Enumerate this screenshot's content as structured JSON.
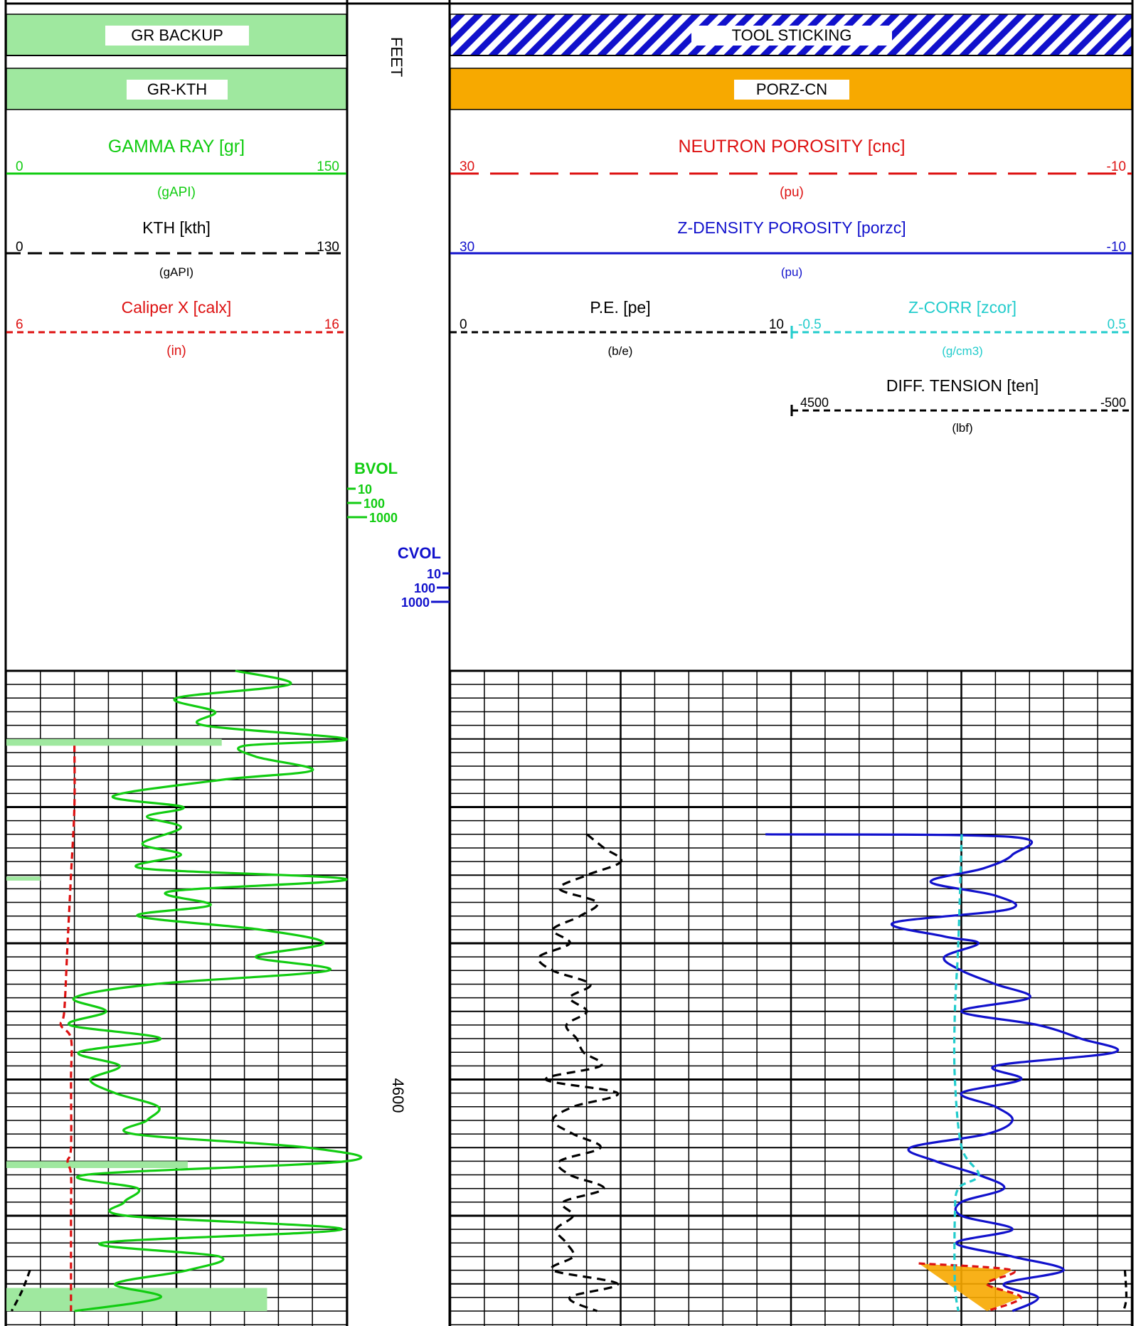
{
  "colors": {
    "green": "#11cc11",
    "red": "#dd1111",
    "blue": "#1111cc",
    "cyan": "#22cccc",
    "black": "#000000",
    "orange": "#f7a900",
    "lightgreen": "#9fe89f"
  },
  "legends": {
    "gr_backup": "GR BACKUP",
    "gr_kth": "GR-KTH",
    "tool_sticking": "TOOL STICKING",
    "porz_cn": "PORZ-CN"
  },
  "depth": {
    "unit": "FEET",
    "label_4600": "4600",
    "bvol": {
      "title": "BVOL",
      "ticks": [
        "10",
        "100",
        "1000"
      ]
    },
    "cvol": {
      "title": "CVOL",
      "ticks": [
        "10",
        "100",
        "1000"
      ]
    }
  },
  "headers": {
    "gr": {
      "name": "GAMMA RAY [gr]",
      "left": "0",
      "right": "150",
      "unit": "(gAPI)"
    },
    "kth": {
      "name": "KTH  [kth]",
      "left": "0",
      "right": "130",
      "unit": "(gAPI)"
    },
    "calx": {
      "name": "Caliper X  [calx]",
      "left": "6",
      "right": "16",
      "unit": "(in)"
    },
    "cnc": {
      "name": "NEUTRON POROSITY [cnc]",
      "left": "30",
      "right": "-10",
      "unit": "(pu)"
    },
    "porzc": {
      "name": "Z-DENSITY POROSITY  [porzc]",
      "left": "30",
      "right": "-10",
      "unit": "(pu)"
    },
    "pe": {
      "name": "P.E.  [pe]",
      "left": "0",
      "right": "10",
      "unit": "(b/e)"
    },
    "zcor": {
      "name": "Z-CORR  [zcor]",
      "left": "-0.5",
      "right": "0.5",
      "unit": "(g/cm3)"
    },
    "ten": {
      "name": "DIFF. TENSION  [ten]",
      "left": "4500",
      "right": "-500",
      "unit": "(lbf)"
    }
  },
  "chart_data": {
    "type": "line",
    "depth_unit": "FEET",
    "ylim": [
      4540,
      4603
    ],
    "series": [
      {
        "name": "GAMMA RAY [gr]",
        "unit": "gAPI",
        "xlim": [
          0,
          150
        ],
        "style": "solid",
        "points": [
          [
            4540.0,
            101
          ],
          [
            4541.0,
            125
          ],
          [
            4542.0,
            75
          ],
          [
            4543.0,
            92
          ],
          [
            4544.0,
            87
          ],
          [
            4545.0,
            150
          ],
          [
            4545.5,
            105
          ],
          [
            4546.3,
            110
          ],
          [
            4547.3,
            135
          ],
          [
            4548.0,
            95
          ],
          [
            4549.2,
            47
          ],
          [
            4550.0,
            78
          ],
          [
            4550.7,
            62
          ],
          [
            4551.5,
            77
          ],
          [
            4552.7,
            60
          ],
          [
            4553.5,
            77
          ],
          [
            4554.5,
            60
          ],
          [
            4555.3,
            150
          ],
          [
            4556.2,
            72
          ],
          [
            4557.2,
            90
          ],
          [
            4558.0,
            58
          ],
          [
            4559.0,
            112
          ],
          [
            4560.0,
            140
          ],
          [
            4561.0,
            110
          ],
          [
            4562.0,
            142
          ],
          [
            4563.0,
            65
          ],
          [
            4564.0,
            30
          ],
          [
            4565.0,
            44
          ],
          [
            4566.0,
            28
          ],
          [
            4567.0,
            68
          ],
          [
            4568.0,
            32
          ],
          [
            4569.0,
            50
          ],
          [
            4570.0,
            37
          ],
          [
            4571.0,
            48
          ],
          [
            4572.0,
            67
          ],
          [
            4573.0,
            62
          ],
          [
            4574.0,
            56
          ],
          [
            4575.0,
            133
          ],
          [
            4576.0,
            150
          ],
          [
            4577.0,
            35
          ],
          [
            4578.0,
            58
          ],
          [
            4579.0,
            52
          ],
          [
            4580.0,
            53
          ],
          [
            4581.0,
            148
          ],
          [
            4582.0,
            42
          ],
          [
            4583.0,
            94
          ],
          [
            4584.0,
            80
          ],
          [
            4585.0,
            48
          ],
          [
            4586.0,
            68
          ],
          [
            4587.0,
            30
          ]
        ]
      },
      {
        "name": "Caliper X  [calx]",
        "unit": "in",
        "xlim": [
          6,
          16
        ],
        "style": "dashed",
        "points": [
          [
            4545.5,
            8.0
          ],
          [
            4550.0,
            8.0
          ],
          [
            4555.0,
            7.9
          ],
          [
            4560.0,
            7.8
          ],
          [
            4565.0,
            7.7
          ],
          [
            4566.0,
            7.6
          ],
          [
            4567.0,
            7.9
          ],
          [
            4570.0,
            7.9
          ],
          [
            4575.0,
            7.9
          ],
          [
            4576.0,
            7.8
          ],
          [
            4577.0,
            7.9
          ],
          [
            4580.0,
            7.9
          ],
          [
            4587.0,
            7.9
          ]
        ]
      },
      {
        "name": "P.E.  [pe]",
        "unit": "b/e",
        "xlim": [
          0,
          10
        ],
        "style": "dashed",
        "points": [
          [
            4552.0,
            4.0
          ],
          [
            4553.0,
            4.5
          ],
          [
            4554.0,
            5.0
          ],
          [
            4555.0,
            4.0
          ],
          [
            4556.0,
            3.2
          ],
          [
            4557.0,
            4.3
          ],
          [
            4558.0,
            3.8
          ],
          [
            4559.0,
            3.0
          ],
          [
            4560.0,
            3.5
          ],
          [
            4561.0,
            2.6
          ],
          [
            4562.0,
            3.0
          ],
          [
            4563.0,
            4.1
          ],
          [
            4564.0,
            3.5
          ],
          [
            4565.0,
            4.0
          ],
          [
            4566.0,
            3.4
          ],
          [
            4567.0,
            3.7
          ],
          [
            4568.0,
            3.9
          ],
          [
            4569.0,
            4.4
          ],
          [
            4570.0,
            2.8
          ],
          [
            4571.0,
            4.9
          ],
          [
            4572.0,
            3.6
          ],
          [
            4573.0,
            3.0
          ],
          [
            4574.0,
            3.6
          ],
          [
            4575.0,
            4.4
          ],
          [
            4576.0,
            3.2
          ],
          [
            4577.0,
            3.5
          ],
          [
            4578.0,
            4.5
          ],
          [
            4579.0,
            3.3
          ],
          [
            4580.0,
            3.6
          ],
          [
            4581.0,
            3.1
          ],
          [
            4582.0,
            3.4
          ],
          [
            4583.0,
            3.6
          ],
          [
            4584.0,
            3.0
          ],
          [
            4585.0,
            4.9
          ],
          [
            4586.0,
            3.5
          ],
          [
            4587.0,
            4.3
          ]
        ]
      },
      {
        "name": "Z-DENSITY POROSITY  [porzc]",
        "unit": "pu",
        "xlim": [
          30,
          -10
        ],
        "style": "solid",
        "points": [
          [
            4552.0,
            11.5
          ],
          [
            4552.2,
            -3.0
          ],
          [
            4553.5,
            -3.0
          ],
          [
            4554.5,
            -1.3
          ],
          [
            4555.5,
            1.8
          ],
          [
            4556.5,
            -2.0
          ],
          [
            4557.5,
            -2.8
          ],
          [
            4558.5,
            4.0
          ],
          [
            4559.5,
            1.0
          ],
          [
            4560.0,
            -1.0
          ],
          [
            4561.0,
            1.0
          ],
          [
            4562.0,
            0.0
          ],
          [
            4563.0,
            -2.0
          ],
          [
            4564.0,
            -4.0
          ],
          [
            4565.0,
            0.0
          ],
          [
            4566.0,
            -4.5
          ],
          [
            4567.0,
            -7.0
          ],
          [
            4568.0,
            -9.0
          ],
          [
            4569.0,
            -2.0
          ],
          [
            4570.0,
            -3.5
          ],
          [
            4571.0,
            0.0
          ],
          [
            4572.0,
            -2.0
          ],
          [
            4573.0,
            -3.0
          ],
          [
            4574.0,
            -1.5
          ],
          [
            4575.0,
            3.0
          ],
          [
            4576.0,
            1.5
          ],
          [
            4577.0,
            -1.0
          ],
          [
            4578.0,
            -2.5
          ],
          [
            4579.0,
            0.0
          ],
          [
            4580.0,
            0.0
          ],
          [
            4581.0,
            -3.0
          ],
          [
            4582.0,
            0.3
          ],
          [
            4583.0,
            -3.0
          ],
          [
            4584.0,
            -6.0
          ],
          [
            4585.0,
            -2.5
          ],
          [
            4586.0,
            -4.5
          ],
          [
            4587.0,
            -3.0
          ]
        ]
      },
      {
        "name": "NEUTRON POROSITY [cnc]",
        "unit": "pu",
        "xlim": [
          30,
          -10
        ],
        "style": "dashed",
        "points": [
          [
            4583.5,
            2.5
          ],
          [
            4584.0,
            -3.0
          ],
          [
            4585.0,
            -1.5
          ],
          [
            4586.0,
            -3.5
          ],
          [
            4587.0,
            -1.5
          ]
        ]
      },
      {
        "name": "Z-CORR  [zcor]",
        "unit": "g/cm3",
        "xlim": [
          -0.5,
          0.5
        ],
        "style": "dashed",
        "points": [
          [
            4552.0,
            0.0
          ],
          [
            4560.0,
            -0.01
          ],
          [
            4565.0,
            -0.02
          ],
          [
            4570.0,
            -0.02
          ],
          [
            4575.0,
            0.0
          ],
          [
            4577.0,
            0.05
          ],
          [
            4578.0,
            -0.01
          ],
          [
            4580.0,
            -0.02
          ],
          [
            4585.0,
            -0.02
          ],
          [
            4587.0,
            -0.01
          ]
        ]
      },
      {
        "name": "DIFF. TENSION  [ten]",
        "unit": "lbf",
        "xlim": [
          4500,
          -500
        ],
        "style": "dashed",
        "points": [
          [
            4584.0,
            -400
          ],
          [
            4586.0,
            -420
          ],
          [
            4587.0,
            -380
          ]
        ]
      },
      {
        "name": "KTH  [kth]",
        "unit": "gAPI",
        "xlim": [
          0,
          130
        ],
        "style": "dashed",
        "points": [
          [
            4584.0,
            9
          ],
          [
            4585.5,
            6
          ],
          [
            4587.0,
            2
          ]
        ]
      }
    ]
  }
}
